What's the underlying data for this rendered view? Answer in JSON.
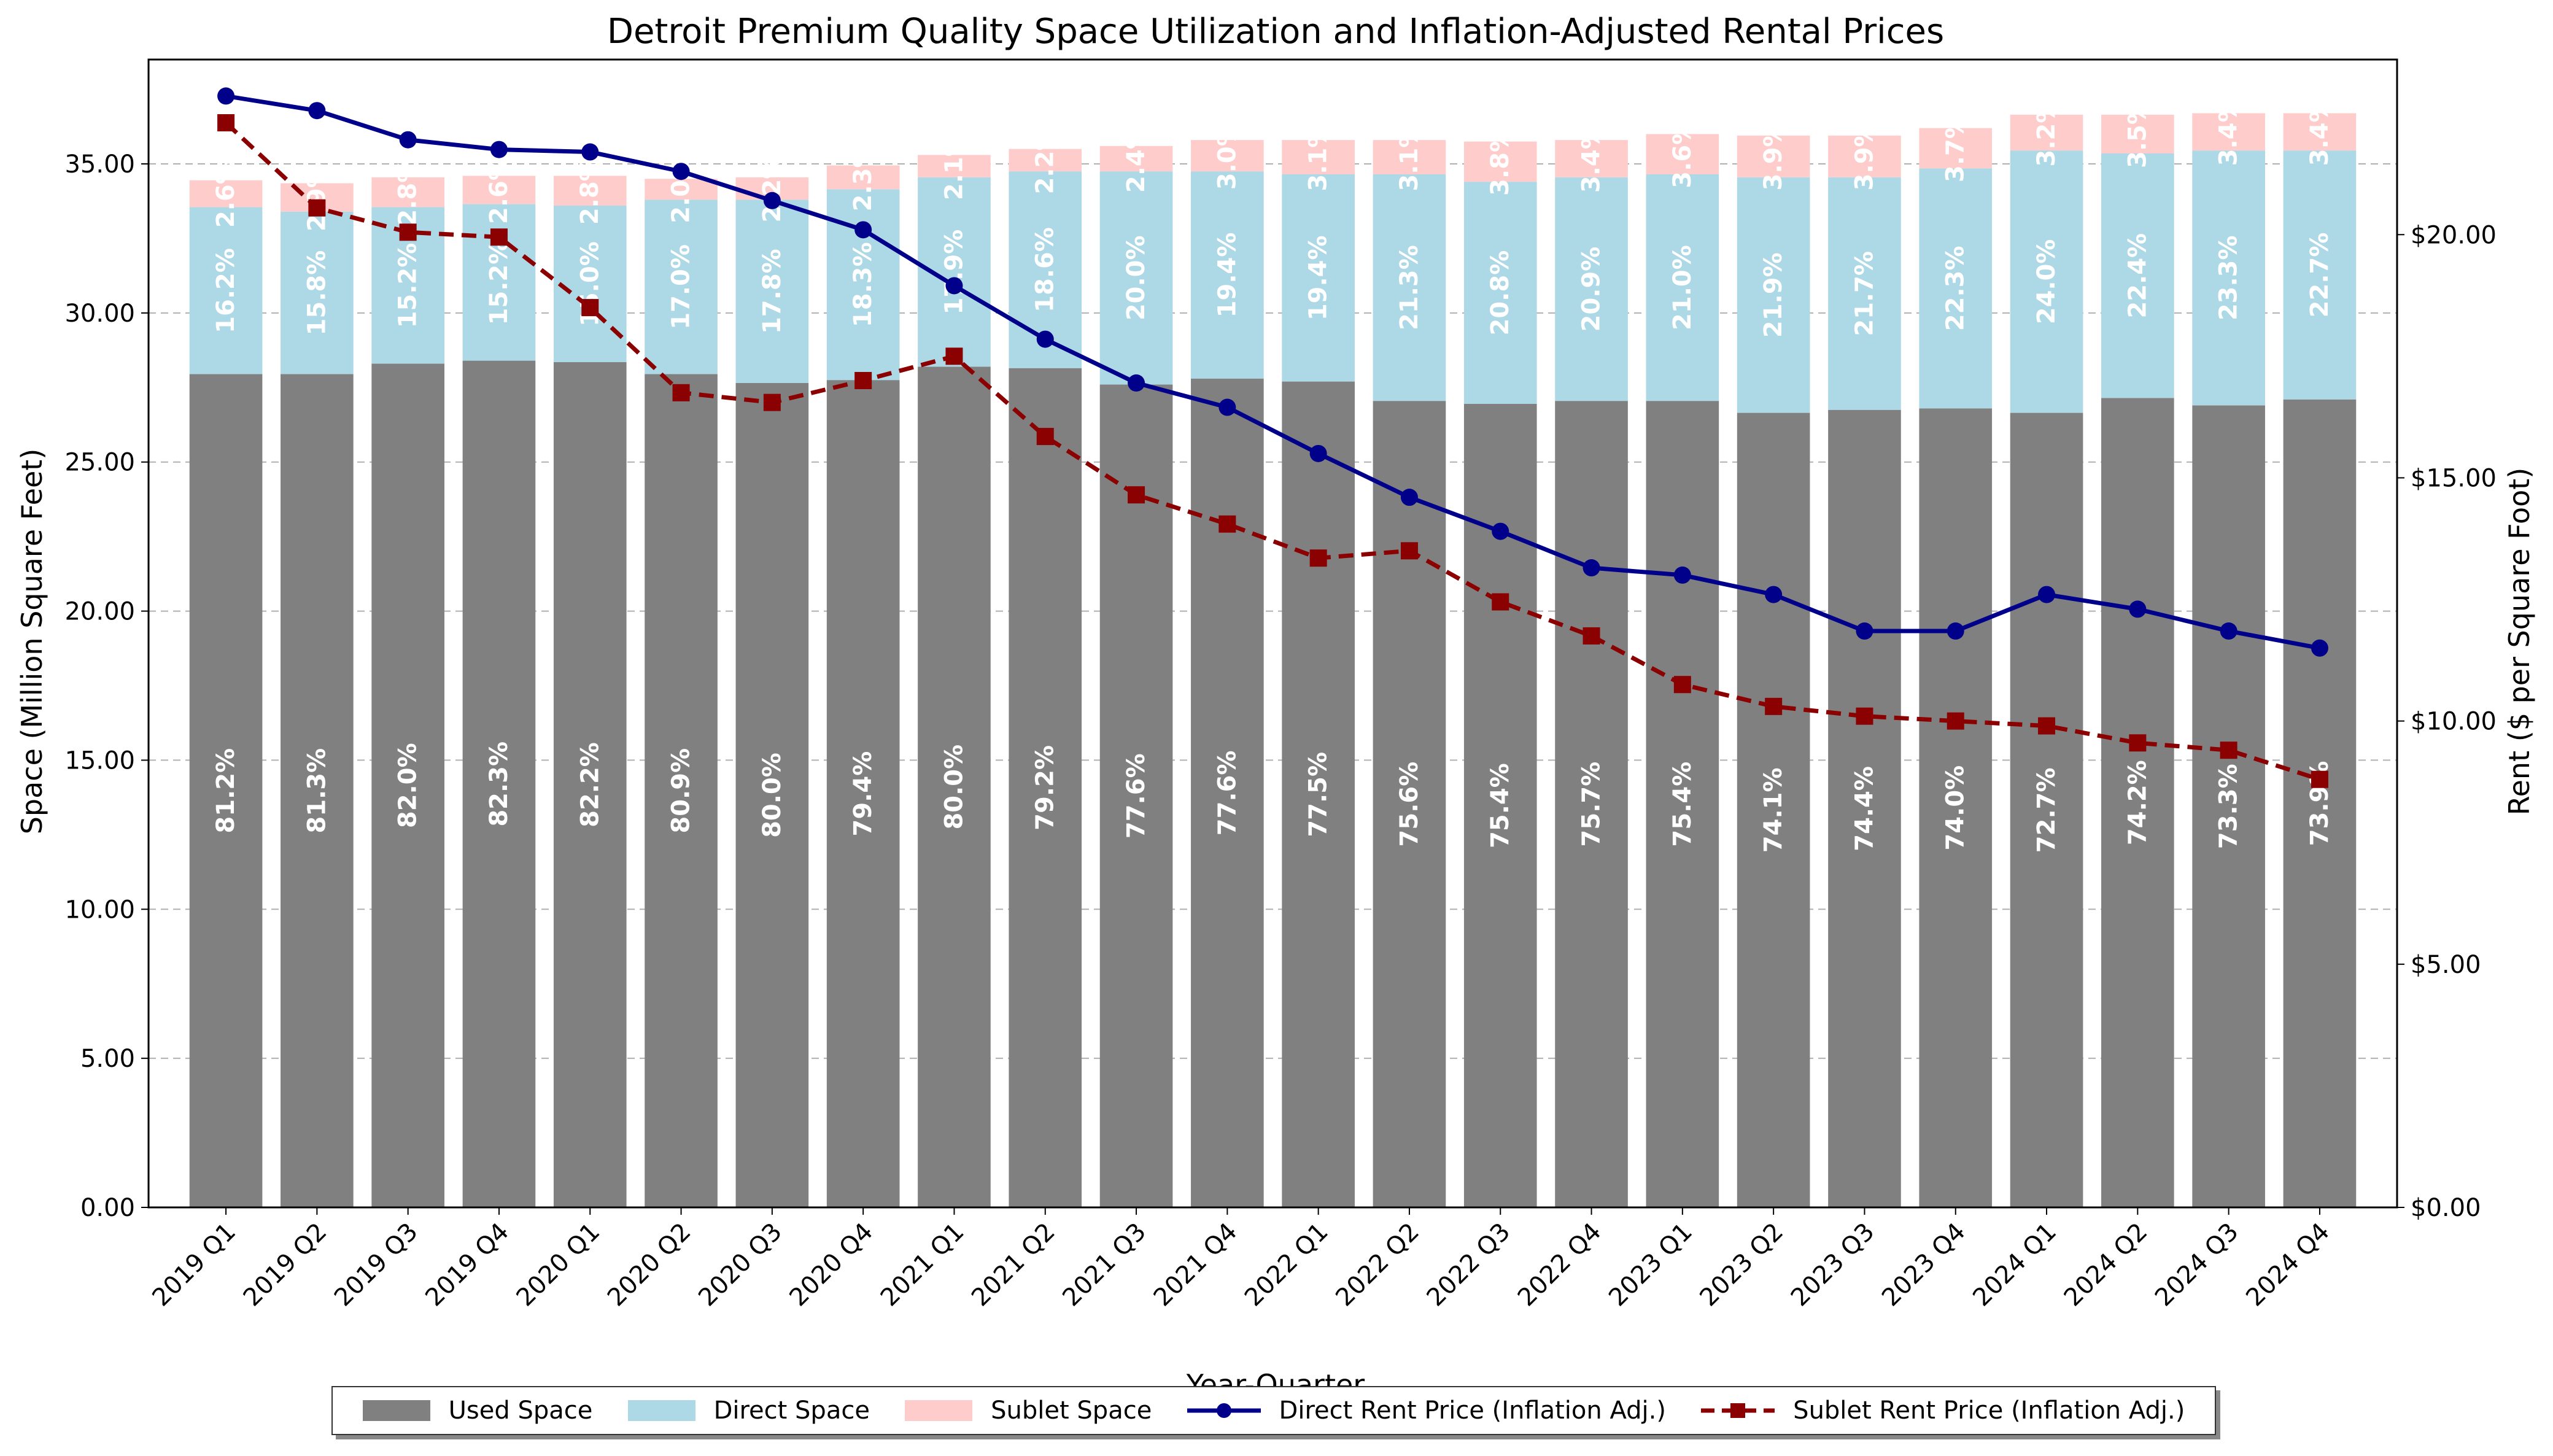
{
  "chart_data": {
    "type": "bar",
    "title": "Detroit Premium Quality Space Utilization and Inflation-Adjusted Rental Prices",
    "xlabel": "Year-Quarter",
    "ylabel": "Space (Million Square Feet)",
    "y2label": "Rent ($ per Square Foot)",
    "ylim": [
      0,
      38.5
    ],
    "y2lim": [
      0,
      23.6
    ],
    "yticks": [
      "0.00",
      "5.00",
      "10.00",
      "15.00",
      "20.00",
      "25.00",
      "30.00",
      "35.00"
    ],
    "y2ticks": [
      "$0.00",
      "$5.00",
      "$10.00",
      "$15.00",
      "$20.00"
    ],
    "grid": true,
    "legend_position": "bottom-center",
    "categories": [
      "2019 Q1",
      "2019 Q2",
      "2019 Q3",
      "2019 Q4",
      "2020 Q1",
      "2020 Q2",
      "2020 Q3",
      "2020 Q4",
      "2021 Q1",
      "2021 Q2",
      "2021 Q3",
      "2021 Q4",
      "2022 Q1",
      "2022 Q2",
      "2022 Q3",
      "2022 Q4",
      "2023 Q1",
      "2023 Q2",
      "2023 Q3",
      "2023 Q4",
      "2024 Q1",
      "2024 Q2",
      "2024 Q3",
      "2024 Q4"
    ],
    "bar_series": [
      {
        "name": "Used Space",
        "color": "#808080",
        "values": [
          27.95,
          27.95,
          28.3,
          28.4,
          28.35,
          27.95,
          27.65,
          27.75,
          28.2,
          28.15,
          27.6,
          27.8,
          27.7,
          27.05,
          26.95,
          27.05,
          27.05,
          26.65,
          26.75,
          26.8,
          26.65,
          27.15,
          26.9,
          27.1
        ],
        "labels": [
          "81.2%",
          "81.3%",
          "82.0%",
          "82.3%",
          "82.2%",
          "80.9%",
          "80.0%",
          "79.4%",
          "80.0%",
          "79.2%",
          "77.6%",
          "77.6%",
          "77.5%",
          "75.6%",
          "75.4%",
          "75.7%",
          "75.4%",
          "74.1%",
          "74.4%",
          "74.0%",
          "72.7%",
          "74.2%",
          "73.3%",
          "73.9%"
        ]
      },
      {
        "name": "Direct Space",
        "color": "#add8e6",
        "values": [
          5.6,
          5.45,
          5.25,
          5.25,
          5.25,
          5.85,
          6.15,
          6.4,
          6.35,
          6.6,
          7.15,
          6.95,
          6.95,
          7.6,
          7.45,
          7.5,
          7.6,
          7.9,
          7.8,
          8.05,
          8.8,
          8.2,
          8.55,
          8.35
        ],
        "labels": [
          "16.2%",
          "15.8%",
          "15.2%",
          "15.2%",
          "15.0%",
          "17.0%",
          "17.8%",
          "18.3%",
          "17.9%",
          "18.6%",
          "20.0%",
          "19.4%",
          "19.4%",
          "21.3%",
          "20.8%",
          "20.9%",
          "21.0%",
          "21.9%",
          "21.7%",
          "22.3%",
          "24.0%",
          "22.4%",
          "23.3%",
          "22.7%"
        ]
      },
      {
        "name": "Sublet Space",
        "color": "#ffcccc",
        "values": [
          0.9,
          0.95,
          1.0,
          0.95,
          1.0,
          0.7,
          0.75,
          0.8,
          0.75,
          0.75,
          0.85,
          1.05,
          1.15,
          1.15,
          1.35,
          1.25,
          1.35,
          1.4,
          1.4,
          1.35,
          1.2,
          1.3,
          1.25,
          1.25
        ],
        "labels": [
          "2.6%",
          "2.9%",
          "2.8%",
          "2.6%",
          "2.8%",
          "2.0%",
          "2.2%",
          "2.3%",
          "2.1%",
          "2.2%",
          "2.4%",
          "3.0%",
          "3.1%",
          "3.1%",
          "3.8%",
          "3.4%",
          "3.6%",
          "3.9%",
          "3.9%",
          "3.7%",
          "3.2%",
          "3.5%",
          "3.4%",
          "3.4%"
        ]
      }
    ],
    "line_series": [
      {
        "name": "Direct Rent Price (Inflation Adj.)",
        "color": "#00008b",
        "marker": "circle",
        "style": "solid",
        "values": [
          22.85,
          22.55,
          21.95,
          21.75,
          21.7,
          21.3,
          20.7,
          20.1,
          18.95,
          17.85,
          16.95,
          16.45,
          15.5,
          14.6,
          13.9,
          13.15,
          13.0,
          12.6,
          11.85,
          11.85,
          12.6,
          12.3,
          11.85,
          11.5
        ]
      },
      {
        "name": "Sublet Rent Price (Inflation Adj.)",
        "color": "#8b0000",
        "marker": "square",
        "style": "dashed",
        "values": [
          22.3,
          20.55,
          20.05,
          19.95,
          18.5,
          16.75,
          16.55,
          17.0,
          17.5,
          15.85,
          14.65,
          14.05,
          13.35,
          13.5,
          12.45,
          11.75,
          10.75,
          10.3,
          10.1,
          10.0,
          9.9,
          9.55,
          9.4,
          8.8
        ]
      }
    ]
  }
}
